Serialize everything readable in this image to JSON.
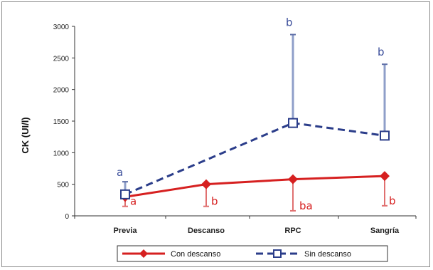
{
  "chart_data": {
    "type": "line",
    "title": "",
    "xlabel": "",
    "ylabel": "CK (UI/l)",
    "ylim": [
      0,
      3000
    ],
    "yticks": [
      0,
      500,
      1000,
      1500,
      2000,
      2500,
      3000
    ],
    "ytick_labels": [
      "0",
      "500",
      "1000",
      "1500",
      "2000",
      "2500",
      "3000"
    ],
    "categories": [
      "Previa",
      "Descanso",
      "RPC",
      "Sangría"
    ],
    "grid": false,
    "legend": "bottom",
    "series": [
      {
        "name": "Con descanso",
        "color": "#d62020",
        "marker": "diamond",
        "line": "solid",
        "values": [
          300,
          500,
          580,
          630
        ],
        "err_low": [
          150,
          350,
          500,
          470
        ],
        "err_high": [
          0,
          0,
          0,
          0
        ],
        "labels": [
          "a",
          "b",
          "ba",
          "b"
        ]
      },
      {
        "name": "Sin descanso",
        "color": "#2b3d8a",
        "marker": "square",
        "line": "dashed",
        "values": [
          340,
          null,
          1470,
          1270
        ],
        "err_low": [
          0,
          null,
          0,
          0
        ],
        "err_high": [
          200,
          null,
          1400,
          1130
        ],
        "labels": [
          "a",
          "",
          "b",
          "b"
        ]
      }
    ]
  }
}
